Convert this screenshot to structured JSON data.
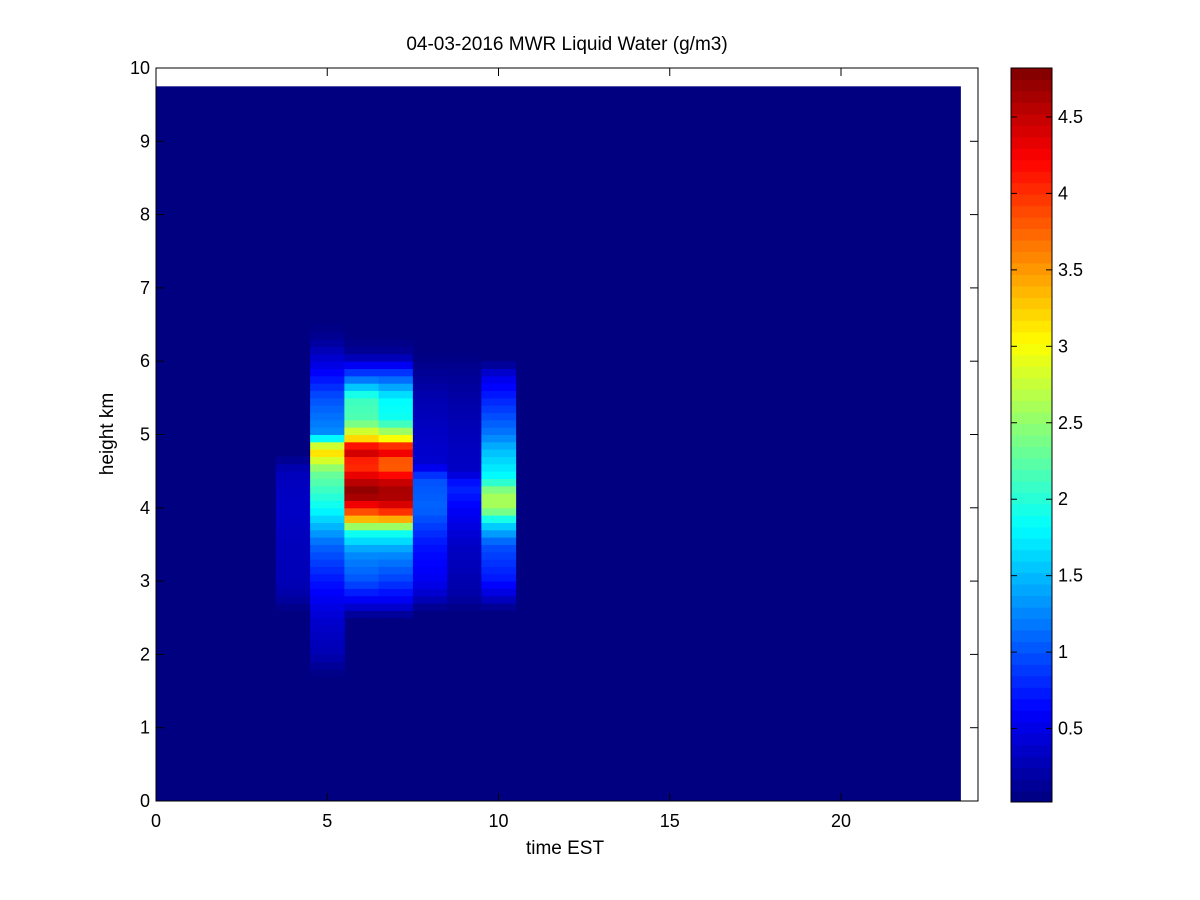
{
  "chart_data": {
    "type": "heatmap",
    "title": "04-03-2016 MWR Liquid Water (g/m3)",
    "xlabel": "time EST",
    "ylabel": "height km",
    "xlim": [
      0,
      24
    ],
    "ylim": [
      0,
      10
    ],
    "x_ticks": [
      "0",
      "5",
      "10",
      "15",
      "20"
    ],
    "y_ticks": [
      "0",
      "1",
      "2",
      "3",
      "4",
      "5",
      "6",
      "7",
      "8",
      "9",
      "10"
    ],
    "data_extent": {
      "x": [
        0,
        23.5
      ],
      "y": [
        0,
        9.75
      ]
    },
    "colorbar": {
      "colormap": "jet",
      "range": [
        0.02,
        4.82
      ],
      "ticks": [
        "0.5",
        "1",
        "1.5",
        "2",
        "2.5",
        "3",
        "3.5",
        "4",
        "4.5"
      ]
    },
    "time_columns": [
      {
        "x": [
          3.5,
          4.5
        ],
        "profile": [
          [
            2.6,
            0.03
          ],
          [
            2.8,
            0.2
          ],
          [
            3.0,
            0.28
          ],
          [
            3.5,
            0.3
          ],
          [
            4.0,
            0.35
          ],
          [
            4.5,
            0.3
          ],
          [
            4.7,
            0.05
          ]
        ]
      },
      {
        "x": [
          4.5,
          5.5
        ],
        "profile": [
          [
            1.7,
            0.03
          ],
          [
            2.0,
            0.25
          ],
          [
            2.5,
            0.4
          ],
          [
            3.0,
            0.7
          ],
          [
            3.5,
            1.1
          ],
          [
            4.0,
            1.85
          ],
          [
            4.5,
            2.35
          ],
          [
            4.8,
            3.3
          ],
          [
            5.0,
            1.3
          ],
          [
            5.5,
            1.0
          ],
          [
            5.9,
            0.55
          ],
          [
            6.3,
            0.12
          ],
          [
            6.5,
            0.03
          ]
        ]
      },
      {
        "x": [
          5.5,
          6.5
        ],
        "profile": [
          [
            2.5,
            0.03
          ],
          [
            2.7,
            0.5
          ],
          [
            3.0,
            1.0
          ],
          [
            3.4,
            1.3
          ],
          [
            3.7,
            2.0
          ],
          [
            3.8,
            3.1
          ],
          [
            4.0,
            4.1
          ],
          [
            4.2,
            4.82
          ],
          [
            4.4,
            4.45
          ],
          [
            4.6,
            3.9
          ],
          [
            4.8,
            4.6
          ],
          [
            4.95,
            3.2
          ],
          [
            5.2,
            2.2
          ],
          [
            5.5,
            2.1
          ],
          [
            5.8,
            1.0
          ],
          [
            6.1,
            0.15
          ],
          [
            6.3,
            0.03
          ]
        ]
      },
      {
        "x": [
          6.5,
          7.5
        ],
        "profile": [
          [
            2.5,
            0.03
          ],
          [
            2.7,
            0.5
          ],
          [
            3.0,
            0.9
          ],
          [
            3.4,
            1.3
          ],
          [
            3.7,
            2.0
          ],
          [
            3.8,
            3.1
          ],
          [
            4.0,
            4.3
          ],
          [
            4.2,
            4.7
          ],
          [
            4.4,
            4.4
          ],
          [
            4.6,
            3.6
          ],
          [
            4.8,
            4.5
          ],
          [
            4.95,
            3.0
          ],
          [
            5.2,
            1.9
          ],
          [
            5.5,
            1.8
          ],
          [
            5.8,
            1.0
          ],
          [
            6.1,
            0.15
          ],
          [
            6.3,
            0.03
          ]
        ]
      },
      {
        "x": [
          7.5,
          8.5
        ],
        "profile": [
          [
            2.6,
            0.03
          ],
          [
            2.8,
            0.35
          ],
          [
            3.0,
            0.55
          ],
          [
            3.5,
            0.7
          ],
          [
            4.0,
            1.1
          ],
          [
            4.4,
            1.0
          ],
          [
            4.6,
            0.4
          ],
          [
            5.0,
            0.35
          ],
          [
            5.5,
            0.25
          ],
          [
            5.9,
            0.1
          ],
          [
            6.1,
            0.03
          ]
        ]
      },
      {
        "x": [
          8.5,
          9.5
        ],
        "profile": [
          [
            2.6,
            0.03
          ],
          [
            2.8,
            0.2
          ],
          [
            3.5,
            0.35
          ],
          [
            4.0,
            0.6
          ],
          [
            4.3,
            0.8
          ],
          [
            4.5,
            0.35
          ],
          [
            5.0,
            0.3
          ],
          [
            5.5,
            0.2
          ],
          [
            5.9,
            0.1
          ],
          [
            6.1,
            0.03
          ]
        ]
      },
      {
        "x": [
          9.5,
          10.5
        ],
        "profile": [
          [
            2.6,
            0.03
          ],
          [
            2.8,
            0.4
          ],
          [
            3.0,
            0.7
          ],
          [
            3.5,
            1.0
          ],
          [
            3.8,
            1.7
          ],
          [
            4.0,
            2.6
          ],
          [
            4.2,
            2.6
          ],
          [
            4.4,
            1.85
          ],
          [
            4.8,
            1.5
          ],
          [
            5.0,
            1.2
          ],
          [
            5.4,
            0.85
          ],
          [
            5.8,
            0.5
          ],
          [
            6.0,
            0.03
          ]
        ]
      }
    ]
  }
}
